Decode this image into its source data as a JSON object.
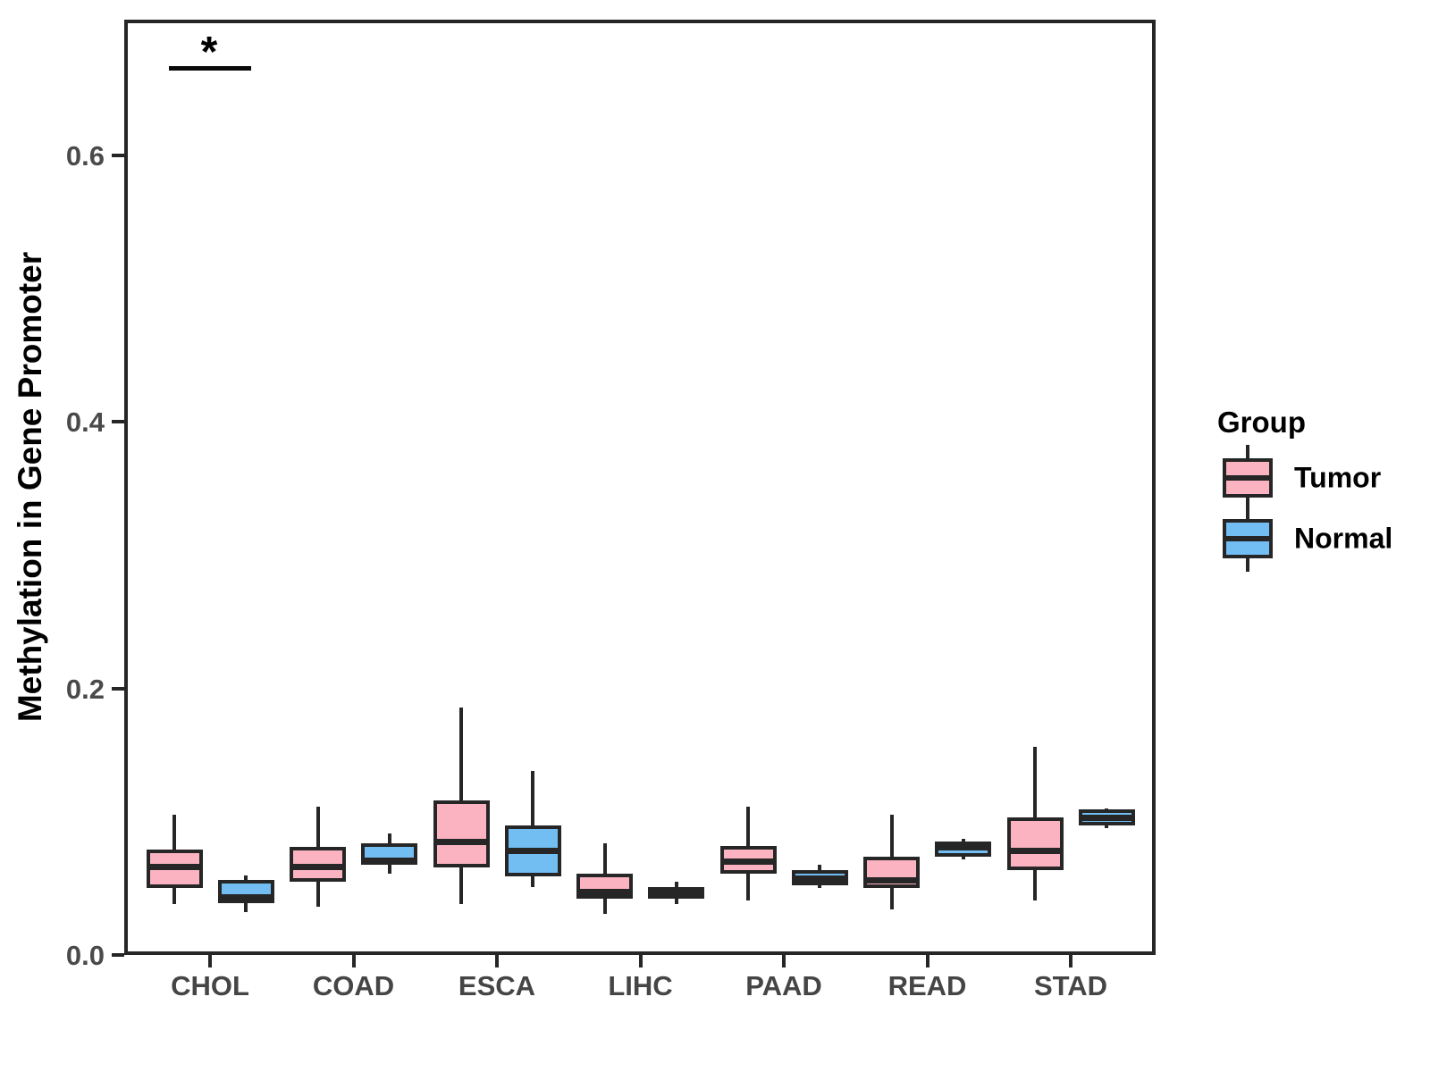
{
  "chart_data": {
    "type": "boxplot",
    "title": "",
    "xlabel": "",
    "ylabel": "Methylation in Gene Promoter",
    "categories": [
      "CHOL",
      "COAD",
      "ESCA",
      "LIHC",
      "PAAD",
      "READ",
      "STAD"
    ],
    "y_ticks": [
      0.0,
      0.2,
      0.4,
      0.6
    ],
    "ylim": [
      0,
      0.702
    ],
    "grid": "off",
    "colors": {
      "ink": "#262626",
      "tumor": "#fbb3c2",
      "normal": "#72bdf2",
      "axis_text": "#4a4a4a"
    },
    "legend": {
      "title": "Group",
      "position": "right",
      "entries": [
        {
          "label": "Tumor",
          "color": "#fbb3c2"
        },
        {
          "label": "Normal",
          "color": "#72bdf2"
        }
      ]
    },
    "series": [
      {
        "name": "Tumor",
        "color": "#fbb3c2",
        "boxes": [
          {
            "category": "CHOL",
            "low": 0.038,
            "q1": 0.05,
            "median": 0.066,
            "q3": 0.079,
            "high": 0.105
          },
          {
            "category": "COAD",
            "low": 0.036,
            "q1": 0.055,
            "median": 0.066,
            "q3": 0.081,
            "high": 0.111
          },
          {
            "category": "ESCA",
            "low": 0.038,
            "q1": 0.066,
            "median": 0.085,
            "q3": 0.116,
            "high": 0.186
          },
          {
            "category": "LIHC",
            "low": 0.031,
            "q1": 0.042,
            "median": 0.047,
            "q3": 0.061,
            "high": 0.084
          },
          {
            "category": "PAAD",
            "low": 0.041,
            "q1": 0.061,
            "median": 0.07,
            "q3": 0.082,
            "high": 0.111
          },
          {
            "category": "READ",
            "low": 0.034,
            "q1": 0.05,
            "median": 0.056,
            "q3": 0.074,
            "high": 0.105
          },
          {
            "category": "STAD",
            "low": 0.041,
            "q1": 0.064,
            "median": 0.078,
            "q3": 0.103,
            "high": 0.156
          }
        ]
      },
      {
        "name": "Normal",
        "color": "#72bdf2",
        "boxes": [
          {
            "category": "CHOL",
            "low": 0.032,
            "q1": 0.039,
            "median": 0.043,
            "q3": 0.056,
            "high": 0.06
          },
          {
            "category": "COAD",
            "low": 0.061,
            "q1": 0.068,
            "median": 0.071,
            "q3": 0.084,
            "high": 0.091
          },
          {
            "category": "ESCA",
            "low": 0.051,
            "q1": 0.059,
            "median": 0.078,
            "q3": 0.097,
            "high": 0.138
          },
          {
            "category": "LIHC",
            "low": 0.038,
            "q1": 0.042,
            "median": 0.046,
            "q3": 0.051,
            "high": 0.055
          },
          {
            "category": "PAAD",
            "low": 0.05,
            "q1": 0.052,
            "median": 0.057,
            "q3": 0.064,
            "high": 0.068
          },
          {
            "category": "READ",
            "low": 0.072,
            "q1": 0.074,
            "median": 0.081,
            "q3": 0.085,
            "high": 0.087
          },
          {
            "category": "STAD",
            "low": 0.095,
            "q1": 0.097,
            "median": 0.103,
            "q3": 0.109,
            "high": 0.11
          }
        ]
      }
    ],
    "annotations": [
      {
        "type": "significance",
        "label": "*",
        "category": "CHOL",
        "y": 0.667
      }
    ]
  }
}
